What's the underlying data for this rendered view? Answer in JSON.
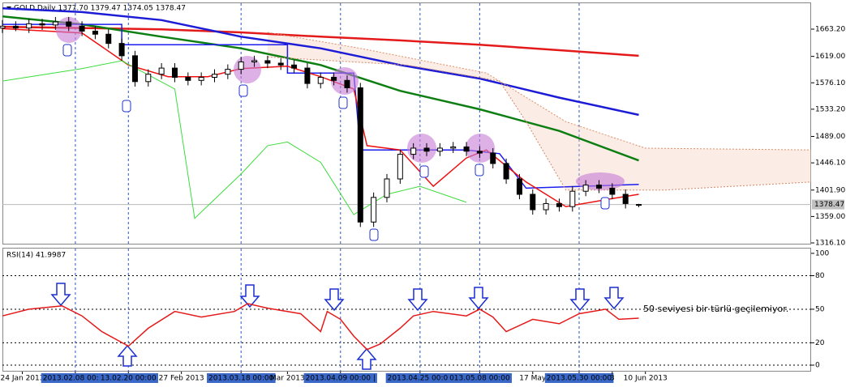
{
  "chart_data": [
    {
      "type": "candlestick",
      "title": "GOLD,Daily  1377.70 1379.47 1374.05 1378.47",
      "xlim": [
        0,
        122
      ],
      "ylim": [
        1313.5,
        1706.6
      ],
      "yticks": [
        {
          "value": 1663.2,
          "label": "1663.20"
        },
        {
          "value": 1619,
          "label": "1619.00"
        },
        {
          "value": 1576.1,
          "label": "1576.10"
        },
        {
          "value": 1533.2,
          "label": "1533.20"
        },
        {
          "value": 1489,
          "label": "1489.00"
        },
        {
          "value": 1446.1,
          "label": "1446.10"
        },
        {
          "value": 1401.9,
          "label": "1401.90"
        },
        {
          "value": 1359,
          "label": "1359.00"
        },
        {
          "value": 1316.1,
          "label": "1316.10"
        }
      ],
      "current_price": 1378.47,
      "x": [
        0,
        2,
        4,
        6,
        8,
        10,
        12,
        14,
        16,
        18,
        20,
        22,
        24,
        26,
        28,
        30,
        32,
        34,
        36,
        38,
        40,
        42,
        44,
        46,
        48,
        50,
        52,
        54,
        56,
        58,
        60,
        62,
        64,
        66,
        68,
        70,
        72,
        74,
        76,
        78,
        80,
        82,
        84,
        86,
        88,
        90,
        92,
        94,
        96
      ],
      "open": [
        1665,
        1668,
        1665,
        1672,
        1670,
        1675,
        1668,
        1660,
        1655,
        1640,
        1620,
        1578,
        1590,
        1600,
        1585,
        1580,
        1585,
        1590,
        1598,
        1610,
        1612,
        1608,
        1605,
        1600,
        1575,
        1585,
        1580,
        1568,
        1350,
        1390,
        1420,
        1460,
        1470,
        1465,
        1470,
        1472,
        1465,
        1462,
        1445,
        1420,
        1395,
        1370,
        1380,
        1375,
        1400,
        1410,
        1405,
        1395,
        1377.7
      ],
      "high": [
        1678,
        1676,
        1680,
        1680,
        1683,
        1683,
        1676,
        1668,
        1663,
        1648,
        1628,
        1598,
        1608,
        1608,
        1593,
        1593,
        1598,
        1606,
        1618,
        1620,
        1620,
        1616,
        1613,
        1608,
        1593,
        1593,
        1588,
        1576,
        1398,
        1428,
        1468,
        1478,
        1478,
        1478,
        1480,
        1480,
        1473,
        1470,
        1453,
        1428,
        1403,
        1388,
        1388,
        1408,
        1418,
        1418,
        1413,
        1403,
        1379.47
      ],
      "low": [
        1657,
        1660,
        1657,
        1662,
        1662,
        1660,
        1652,
        1647,
        1632,
        1612,
        1570,
        1570,
        1582,
        1577,
        1572,
        1572,
        1577,
        1582,
        1590,
        1602,
        1600,
        1597,
        1592,
        1567,
        1567,
        1572,
        1560,
        1342,
        1342,
        1382,
        1412,
        1452,
        1457,
        1457,
        1462,
        1457,
        1454,
        1437,
        1412,
        1387,
        1362,
        1362,
        1367,
        1367,
        1392,
        1397,
        1387,
        1372,
        1374.05
      ],
      "close": [
        1668,
        1665,
        1672,
        1670,
        1675,
        1668,
        1660,
        1655,
        1640,
        1620,
        1578,
        1590,
        1600,
        1585,
        1580,
        1585,
        1590,
        1598,
        1610,
        1612,
        1608,
        1605,
        1600,
        1575,
        1585,
        1580,
        1568,
        1350,
        1390,
        1420,
        1460,
        1470,
        1465,
        1470,
        1472,
        1465,
        1462,
        1445,
        1420,
        1395,
        1370,
        1380,
        1375,
        1400,
        1410,
        1405,
        1395,
        1380,
        1378.47
      ],
      "series": [
        {
          "color": "#e41a1a",
          "width": 2.5,
          "x": [
            0,
            12,
            24,
            36,
            48,
            60,
            72,
            84,
            96
          ],
          "values": [
            1667,
            1665,
            1663,
            1658,
            1651,
            1645,
            1638,
            1629,
            1620
          ]
        },
        {
          "color": "#1c1cd6",
          "width": 2.5,
          "x": [
            0,
            12,
            24,
            36,
            48,
            60,
            72,
            84,
            96
          ],
          "values": [
            1697,
            1691,
            1678,
            1651,
            1632,
            1605,
            1583,
            1552,
            1524
          ]
        },
        {
          "color": "#0d7f12",
          "width": 2.5,
          "x": [
            0,
            12,
            24,
            36,
            48,
            60,
            72,
            84,
            96
          ],
          "values": [
            1684,
            1671,
            1651,
            1632,
            1605,
            1563,
            1533,
            1498,
            1450
          ]
        },
        {
          "color": "#1c1cf0",
          "width": 1.5,
          "x": [
            0,
            18,
            18,
            43,
            43,
            53,
            54,
            70,
            75,
            79,
            96
          ],
          "values": [
            1671,
            1671,
            1638,
            1638,
            1592,
            1592,
            1467,
            1467,
            1461,
            1405,
            1411
          ]
        },
        {
          "color": "#ee1111",
          "width": 1.5,
          "x": [
            0,
            12,
            19,
            25,
            31,
            36,
            43,
            48,
            53,
            55,
            60,
            65,
            70,
            73,
            79,
            85,
            92,
            96
          ],
          "values": [
            1664,
            1657,
            1605,
            1586,
            1586,
            1599,
            1603,
            1586,
            1566,
            1474,
            1467,
            1408,
            1454,
            1467,
            1415,
            1375,
            1388,
            1395
          ]
        },
        {
          "color": "#3ddc3d",
          "width": 1,
          "x": [
            0,
            12,
            18,
            26,
            29,
            36,
            40,
            43,
            48,
            53,
            58,
            63,
            70
          ],
          "values": [
            1579,
            1599,
            1612,
            1566,
            1356,
            1428,
            1474,
            1480,
            1447,
            1362,
            1395,
            1408,
            1382
          ]
        },
        {
          "color": "#e0906a",
          "width": 1,
          "dashed": true,
          "x": [
            40,
            54,
            73,
            85,
            97,
            122
          ],
          "values": [
            1658,
            1632,
            1592,
            1513,
            1470,
            1467
          ]
        },
        {
          "color": "#d08a6a",
          "width": 1,
          "dashed": true,
          "x": [
            40,
            61,
            75,
            79,
            85,
            100,
            122
          ],
          "values": [
            1618,
            1605,
            1579,
            1513,
            1402,
            1402,
            1415
          ]
        }
      ]
    },
    {
      "type": "line",
      "title": "RSI(14) 41.9987",
      "annotation": "50 seviyesi bir türlü geçilemiyor.",
      "xlim": [
        0,
        122
      ],
      "ylim": [
        -5.8,
        105
      ],
      "yticks": [
        100,
        80,
        50,
        20,
        0
      ],
      "xticks": [
        {
          "value": 3,
          "label": "24 Jan 2013"
        },
        {
          "value": 11,
          "label": "2013.02.08 00:00",
          "highlight": true
        },
        {
          "value": 19,
          "label": "13.02.20 00:00",
          "highlight": true
        },
        {
          "value": 27,
          "label": "27 Feb 2013"
        },
        {
          "value": 36,
          "label": "2013.03.18 00:00",
          "highlight": true
        },
        {
          "value": 43,
          "label": "Mar 2013"
        },
        {
          "value": 51,
          "label": "2013.04.09 00:00 |",
          "highlight": true
        },
        {
          "value": 63,
          "label": "2013.04.25 00:00",
          "highlight": true
        },
        {
          "value": 72,
          "label": "013.05.08 00:00",
          "highlight": true
        },
        {
          "value": 80,
          "label": "17 May"
        },
        {
          "value": 87,
          "label": "2013.05.30 00:00",
          "highlight": true
        },
        {
          "value": 92,
          "label": "3"
        },
        {
          "value": 97,
          "label": "10 Jun 2013"
        }
      ],
      "series": [
        {
          "color": "#e41a1a",
          "x": [
            0,
            4,
            9,
            12,
            15,
            19,
            22,
            26,
            30,
            35,
            37,
            40,
            45,
            48,
            49,
            51,
            53,
            55,
            57,
            60,
            62,
            65,
            70,
            72,
            74,
            76,
            80,
            84,
            87,
            89,
            91,
            93,
            96
          ],
          "values": [
            44,
            50,
            53,
            44,
            30,
            17,
            33,
            48,
            43,
            48,
            55,
            51,
            46,
            30,
            48,
            41,
            26,
            14,
            19,
            33,
            44,
            48,
            44,
            50,
            43,
            30,
            41,
            37,
            46,
            48,
            50,
            41,
            42
          ]
        }
      ]
    }
  ]
}
